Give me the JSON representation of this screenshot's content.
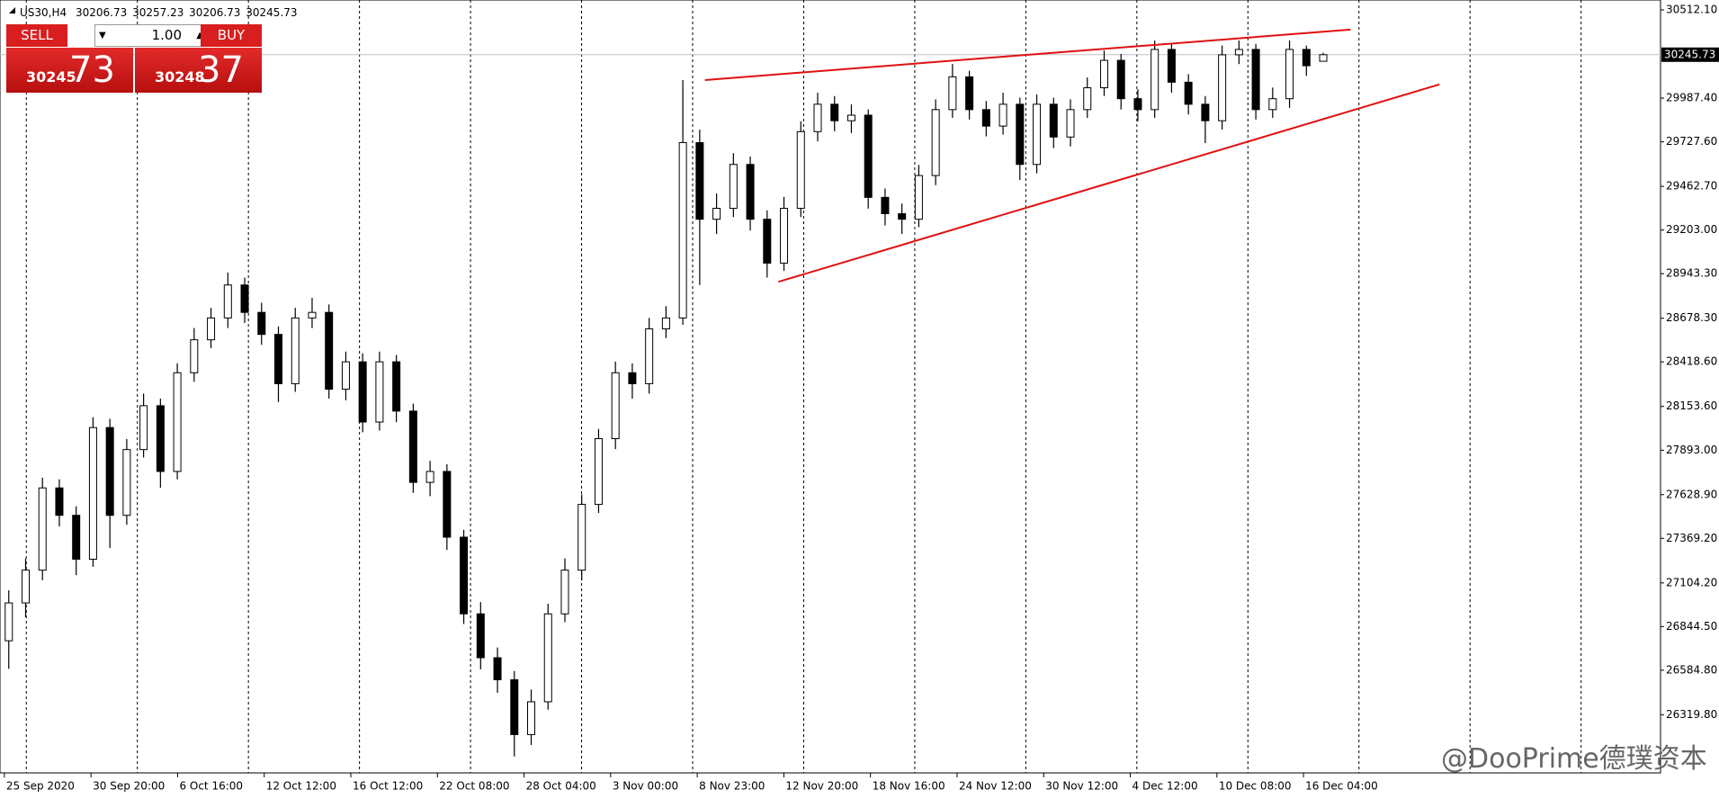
{
  "chart_data": {
    "type": "candlestick",
    "symbol": "US30,H4",
    "xtick_labels": [
      "25 Sep 2020",
      "30 Sep 20:00",
      "6 Oct 16:00",
      "12 Oct 12:00",
      "16 Oct 12:00",
      "22 Oct 08:00",
      "28 Oct 04:00",
      "3 Nov 00:00",
      "8 Nov 23:00",
      "12 Nov 20:00",
      "18 Nov 16:00",
      "24 Nov 12:00",
      "30 Nov 12:00",
      "4 Dec 12:00",
      "10 Dec 08:00",
      "16 Dec 04:00"
    ],
    "open": [
      26760,
      26985,
      27180,
      27669,
      27506,
      27245,
      28028,
      27506,
      27897,
      28158,
      27767,
      28354,
      28550,
      28680,
      28876,
      28713,
      28582,
      28289,
      28680,
      28713,
      28256,
      28419,
      28061,
      28419,
      28126,
      27702,
      27767,
      27376,
      26920,
      26659,
      26528,
      26202,
      26397,
      26920,
      27180,
      27571,
      27962,
      28354,
      28289,
      28615,
      28680,
      29723,
      29267,
      29332,
      29593,
      29267,
      29006,
      29332,
      29788,
      29951,
      29853,
      29886,
      29397,
      29300,
      29267,
      29527,
      29919,
      30114,
      29919,
      29821,
      29951,
      29593,
      29951,
      29756,
      29919,
      30049,
      30212,
      29984,
      29919,
      30277,
      30082,
      29951,
      29853,
      30245,
      30277,
      29919,
      29984,
      30277,
      30206.73
    ],
    "high": [
      27060,
      27250,
      27730,
      27720,
      27560,
      28090,
      28080,
      27960,
      28230,
      28200,
      28410,
      28620,
      28740,
      28950,
      28920,
      28770,
      28630,
      28740,
      28800,
      28760,
      28480,
      28470,
      28480,
      28460,
      28170,
      27830,
      27810,
      27420,
      26990,
      26720,
      26580,
      26470,
      26980,
      27250,
      27630,
      28020,
      28420,
      28410,
      28680,
      28750,
      30095,
      29800,
      29420,
      29660,
      29640,
      29320,
      29400,
      29850,
      30020,
      30000,
      29950,
      29920,
      29450,
      29360,
      29590,
      29980,
      30190,
      30150,
      29970,
      30020,
      29990,
      30010,
      29990,
      29980,
      30110,
      30270,
      30250,
      30040,
      30330,
      30310,
      30130,
      30000,
      30300,
      30330,
      30310,
      30050,
      30330,
      30300,
      30257.23
    ],
    "low": [
      26593,
      26900,
      27120,
      27440,
      27150,
      27200,
      27311,
      27450,
      27850,
      27670,
      27720,
      28300,
      28500,
      28620,
      28650,
      28520,
      28180,
      28240,
      28620,
      28200,
      28190,
      28000,
      28010,
      28060,
      27640,
      27620,
      27300,
      26860,
      26590,
      26450,
      26072,
      26140,
      26350,
      26870,
      27120,
      27520,
      27900,
      28200,
      28230,
      28560,
      28640,
      28876,
      29180,
      29280,
      29200,
      28920,
      28960,
      29280,
      29730,
      29790,
      29780,
      29330,
      29230,
      29180,
      29220,
      29470,
      29870,
      29860,
      29760,
      29770,
      29500,
      29540,
      29690,
      29700,
      29870,
      30000,
      29920,
      29850,
      29870,
      30020,
      29890,
      29720,
      29800,
      30190,
      29860,
      29870,
      29930,
      30120,
      30206.73
    ],
    "close": [
      26985,
      27180,
      27669,
      27506,
      27245,
      28028,
      27506,
      27897,
      28158,
      27767,
      28354,
      28550,
      28680,
      28876,
      28713,
      28582,
      28289,
      28680,
      28713,
      28256,
      28419,
      28061,
      28419,
      28126,
      27702,
      27767,
      27376,
      26920,
      26659,
      26528,
      26202,
      26397,
      26920,
      27180,
      27571,
      27962,
      28354,
      28289,
      28615,
      28680,
      29723,
      29267,
      29332,
      29593,
      29267,
      29006,
      29332,
      29788,
      29951,
      29853,
      29886,
      29397,
      29300,
      29267,
      29527,
      29919,
      30114,
      29919,
      29821,
      29951,
      29593,
      29951,
      29756,
      29919,
      30049,
      30212,
      29984,
      29919,
      30277,
      30082,
      29951,
      29853,
      30245,
      30277,
      29919,
      29984,
      30277,
      30180,
      30245.73
    ],
    "ylim": [
      25974,
      30571
    ],
    "yticks": [
      {
        "value": 30512.1,
        "label": "30512.10"
      },
      {
        "value": 29987.4,
        "label": "29987.40"
      },
      {
        "value": 29727.6,
        "label": "29727.60"
      },
      {
        "value": 29462.7,
        "label": "29462.70"
      },
      {
        "value": 29203.0,
        "label": "29203.00"
      },
      {
        "value": 28943.3,
        "label": "28943.30"
      },
      {
        "value": 28678.3,
        "label": "28678.30"
      },
      {
        "value": 28418.6,
        "label": "28418.60"
      },
      {
        "value": 28153.6,
        "label": "28153.60"
      },
      {
        "value": 27893.0,
        "label": "27893.00"
      },
      {
        "value": 27628.9,
        "label": "27628.90"
      },
      {
        "value": 27369.2,
        "label": "27369.20"
      },
      {
        "value": 27104.2,
        "label": "27104.20"
      },
      {
        "value": 26844.5,
        "label": "26844.50"
      },
      {
        "value": 26584.8,
        "label": "26584.80"
      },
      {
        "value": 26319.8,
        "label": "26319.80"
      }
    ],
    "trendlines": [
      {
        "color": "#e01010",
        "values": [
          30095,
          30395
        ]
      },
      {
        "color": "#e01010",
        "values": [
          28895,
          30069
        ]
      }
    ],
    "grid": true
  },
  "trade_panel": {
    "sell": "SELL",
    "buy": "BUY",
    "lot": "1.00",
    "bid_main": "30245",
    "bid_pips": "73",
    "ask_main": "30248",
    "ask_pips": "37"
  },
  "watermark": "@DooPrime德璞资本"
}
